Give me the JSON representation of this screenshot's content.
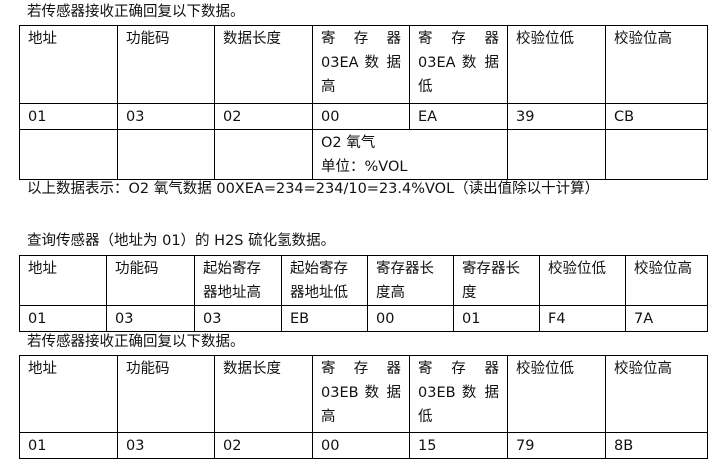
{
  "section1": {
    "intro": "若传感器接收正确回复以下数据。",
    "headers": [
      "地址",
      "功能码",
      "数据长度",
      "寄 存 器 03EA 数 据 高",
      "寄 存 器 03EA 数 据 低",
      "校验位低",
      "校验位高"
    ],
    "row": [
      "01",
      "03",
      "02",
      "00",
      "EA",
      "39",
      "CB"
    ],
    "note_line1": "O2 氧气",
    "note_line2": "单位：%VOL",
    "summary": "以上数据表示：O2 氧气数据 00XEA=234=234/10=23.4%VOL（读出值除以十计算）"
  },
  "section2": {
    "intro": "查询传感器（地址为 01）的 H2S 硫化氢数据。",
    "headers": [
      "地址",
      "功能码",
      "起始寄存器地址高",
      "起始寄存器地址低",
      "寄存器长度高",
      "寄存器长度",
      "校验位低",
      "校验位高"
    ],
    "row": [
      "01",
      "03",
      "03",
      "EB",
      "00",
      "01",
      "F4",
      "7A"
    ]
  },
  "section3": {
    "intro": "若传感器接收正确回复以下数据。",
    "headers": [
      "地址",
      "功能码",
      "数据长度",
      "寄 存 器 03EB 数 据 高",
      "寄 存 器 03EB 数 据 低",
      "校验位低",
      "校验位高"
    ],
    "row": [
      "01",
      "03",
      "02",
      "00",
      "15",
      "79",
      "8B"
    ]
  }
}
